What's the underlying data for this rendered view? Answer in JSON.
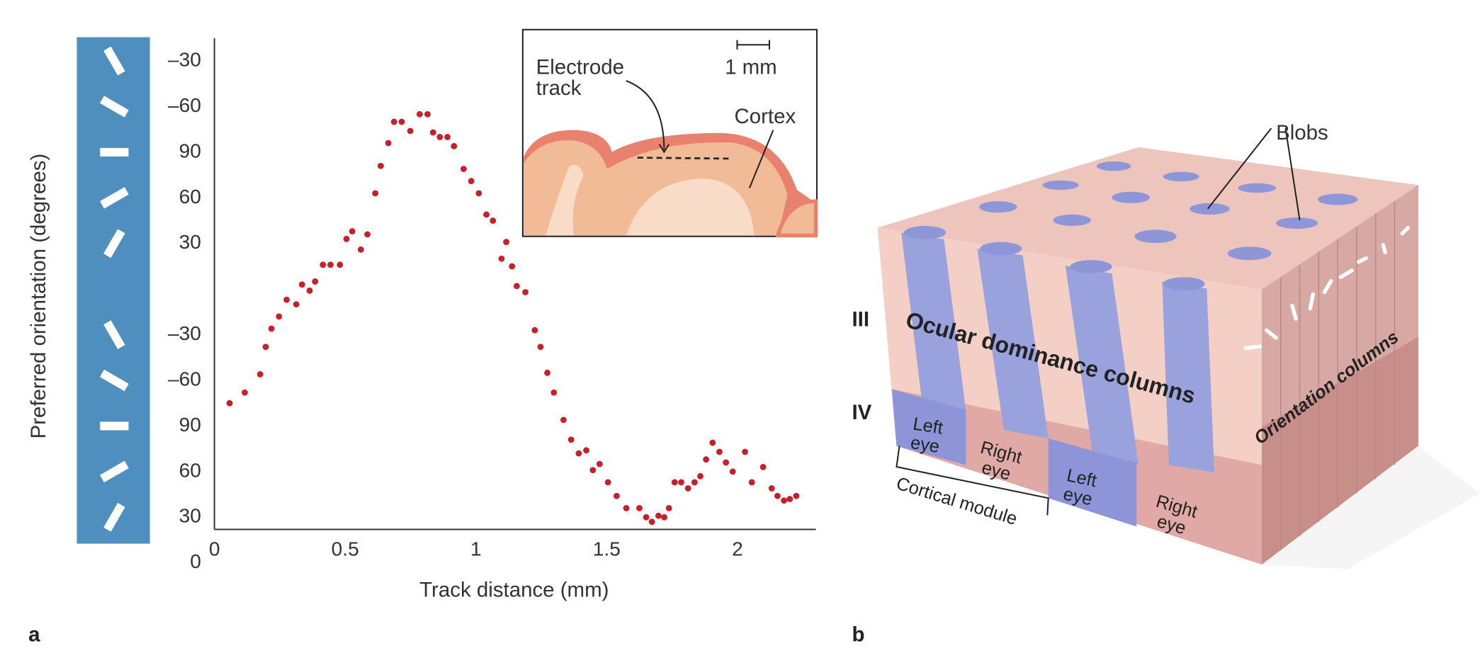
{
  "chart_data": {
    "type": "scatter",
    "xlabel": "Track distance (mm)",
    "ylabel": "Preferred orientation (degrees)",
    "color": "#c8202a",
    "x": [
      0.058,
      0.116,
      0.175,
      0.196,
      0.218,
      0.247,
      0.276,
      0.313,
      0.335,
      0.364,
      0.385,
      0.415,
      0.444,
      0.48,
      0.505,
      0.527,
      0.56,
      0.585,
      0.615,
      0.636,
      0.665,
      0.687,
      0.716,
      0.749,
      0.785,
      0.815,
      0.836,
      0.862,
      0.891,
      0.916,
      0.953,
      0.982,
      1.011,
      1.04,
      1.065,
      1.098,
      1.116,
      1.138,
      1.156,
      1.189,
      1.225,
      1.247,
      1.273,
      1.298,
      1.335,
      1.364,
      1.393,
      1.422,
      1.447,
      1.473,
      1.505,
      1.538,
      1.575,
      1.625,
      1.651,
      1.673,
      1.698,
      1.72,
      1.738,
      1.76,
      1.785,
      1.811,
      1.836,
      1.858,
      1.88,
      1.905,
      1.931,
      1.956,
      1.982,
      2.029,
      2.055,
      2.098,
      2.131,
      2.153,
      2.178,
      2.2,
      2.225
    ],
    "values": [
      105,
      112,
      124,
      142,
      154,
      162,
      173,
      170,
      183,
      179,
      185,
      196,
      196,
      196,
      213,
      218,
      206,
      216,
      243,
      261,
      276,
      290,
      290,
      284,
      295,
      295,
      283,
      280,
      280,
      274,
      259,
      251,
      243,
      229,
      225,
      200,
      211,
      195,
      182,
      178,
      153,
      142,
      125,
      112,
      94,
      81,
      72,
      74,
      61,
      65,
      53,
      44,
      36,
      36,
      30,
      27,
      31,
      30,
      36,
      53,
      53,
      49,
      53,
      57,
      68,
      79,
      73,
      66,
      60,
      73,
      53,
      63,
      49,
      44,
      41,
      42,
      44
    ],
    "xlim": [
      0,
      2.3
    ],
    "xticks": [
      0,
      0.5,
      1,
      1.5,
      2
    ],
    "ylim": [
      22,
      345
    ],
    "yticks": [
      30,
      60,
      90,
      {
        "value": 120,
        "label": "–60"
      },
      {
        "value": 150,
        "label": "–30"
      },
      0,
      {
        "value": 210,
        "label": "30"
      },
      {
        "value": 240,
        "label": "60"
      },
      {
        "value": 270,
        "label": "90"
      },
      {
        "value": 300,
        "label": "–60"
      },
      {
        "value": 330,
        "label": "–30"
      }
    ],
    "inset": {
      "electrode": [
        "Electrode",
        "track"
      ],
      "scale": "1 mm",
      "cortex": "Cortex"
    },
    "panel": "a"
  },
  "diagram": {
    "panel": "b",
    "blobs": "Blobs",
    "ocular": "Ocular dominance columns",
    "orientation": "Orientation columns",
    "layer3": "III",
    "layer4": "IV",
    "module": "Cortical module",
    "eyes": [
      [
        "Left",
        "eye"
      ],
      [
        "Right",
        "eye"
      ],
      [
        "Left",
        "eye"
      ],
      [
        "Right",
        "eye"
      ]
    ]
  }
}
